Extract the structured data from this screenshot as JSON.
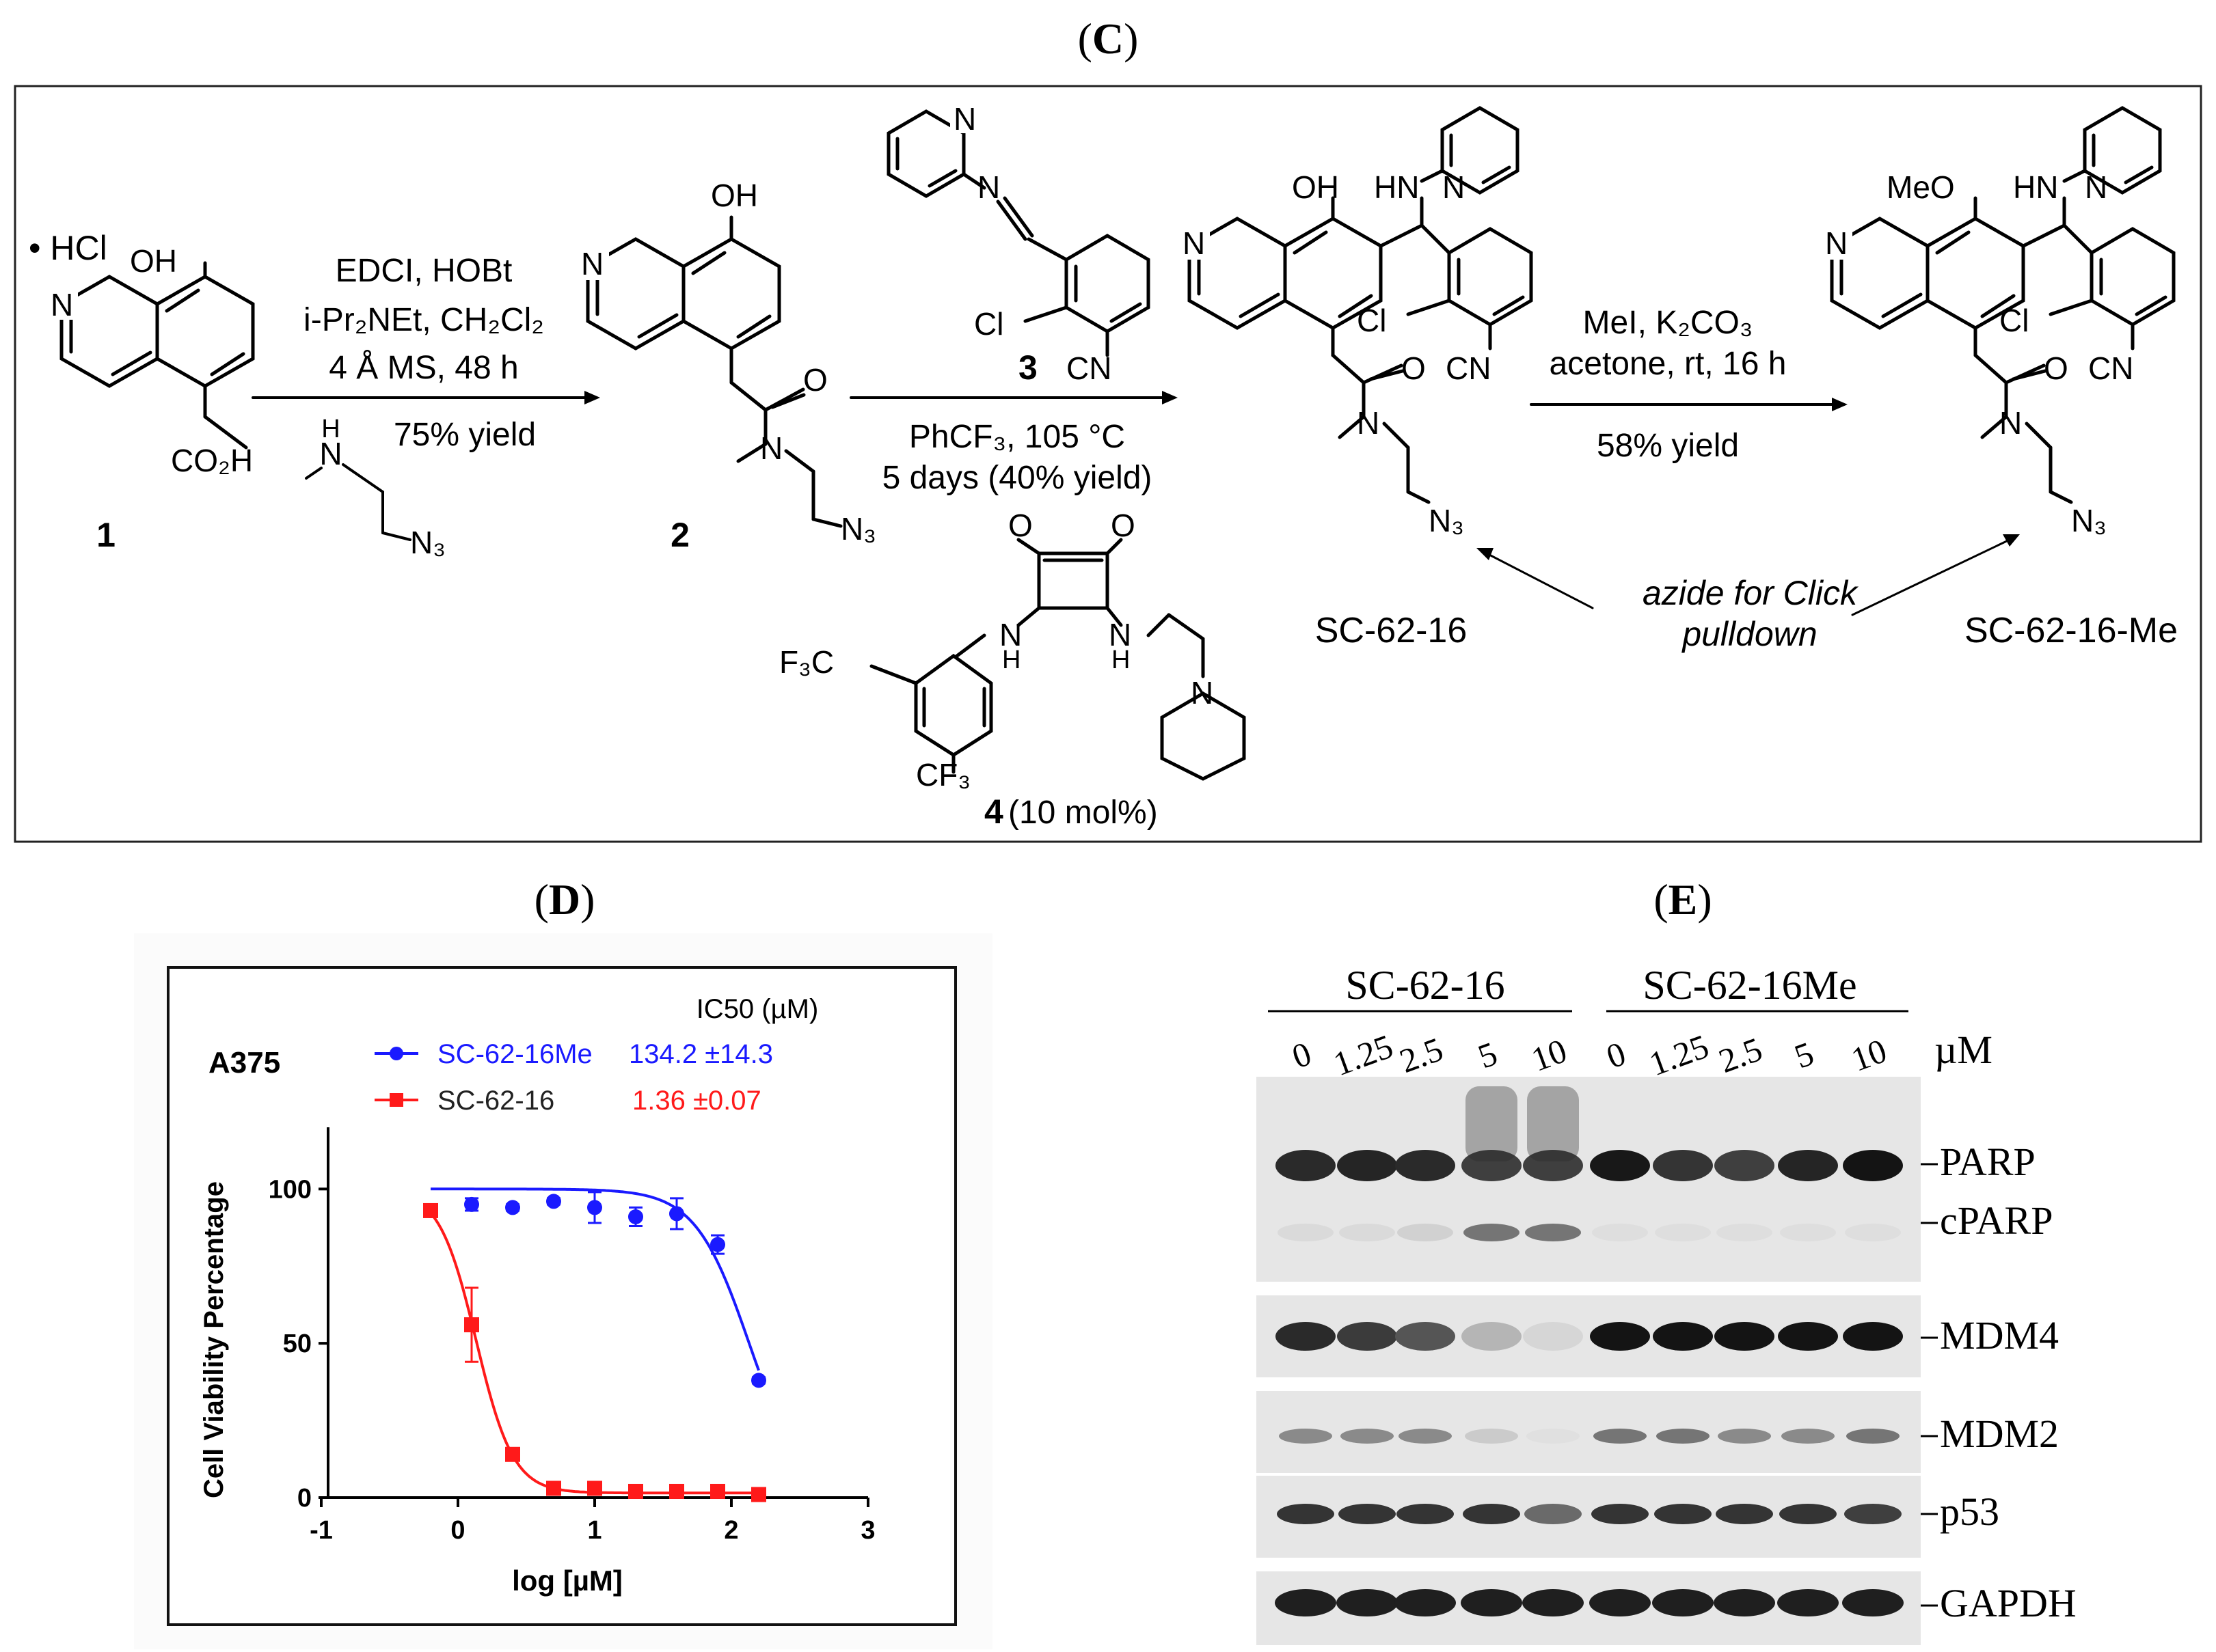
{
  "panels": {
    "C": {
      "label": "C"
    },
    "D": {
      "label": "D"
    },
    "E": {
      "label": "E"
    }
  },
  "scheme": {
    "reagent_text": {
      "start_salt": "• HCl",
      "oh": "OH",
      "n": "N",
      "co2h": "CO₂H",
      "cmpd1": "1",
      "step1_line1": "EDCI, HOBt",
      "step1_line2": "i-Pr₂NEt, CH₂Cl₂",
      "step1_line3": "4 Å MS, 48 h",
      "step1_yield": "75% yield",
      "amine_h": "H",
      "amine_n": "N",
      "amine_n3": "N₃",
      "cmpd2": "2",
      "cmpd2_o": "O",
      "cmpd2_n": "N",
      "cmpd2_n3": "N₃",
      "reagent3_n1": "N",
      "reagent3_n2": "N",
      "reagent3_cl": "Cl",
      "reagent3_cn": "CN",
      "reagent3_label": "3",
      "step2_line1": "PhCF₃, 105 °C",
      "step2_line2": "5 days (40% yield)",
      "cat_o1": "O",
      "cat_o2": "O",
      "cat_nh1": "N",
      "cat_h1": "H",
      "cat_nh2": "N",
      "cat_h2": "H",
      "cat_n3": "N",
      "cat_f3c": "F₃C",
      "cat_cf3": "CF₃",
      "cat_label": "4",
      "cat_loading": "(10 mol%)",
      "sc_oh": "OH",
      "sc_hn": "HN",
      "sc_n_pyr": "N",
      "sc_n_quin": "N",
      "sc_cl": "Cl",
      "sc_o": "O",
      "sc_cn": "CN",
      "sc_n_amide": "N",
      "sc_n3": "N₃",
      "sc_name": "SC-62-16",
      "step3_line1": "MeI, K₂CO₃",
      "step3_line2": "acetone, rt, 16 h",
      "step3_yield": "58% yield",
      "me_meo": "MeO",
      "me_hn": "HN",
      "me_n_pyr": "N",
      "me_n_quin": "N",
      "me_cl": "Cl",
      "me_o": "O",
      "me_cn": "CN",
      "me_n_amide": "N",
      "me_n3": "N₃",
      "me_name": "SC-62-16-Me",
      "azide_note_1": "azide for Click",
      "azide_note_2": "pulldown"
    }
  },
  "chart_data": {
    "type": "scatter",
    "title": "A375",
    "xlabel": "log [µM]",
    "ylabel": "Cell Viability Percentage",
    "xlim": [
      -1,
      3
    ],
    "ylim": [
      0,
      120
    ],
    "xticks": [
      "-1",
      "0",
      "1",
      "2",
      "3"
    ],
    "yticks": [
      "0",
      "50",
      "100"
    ],
    "legend_header": "IC50 (µM)",
    "legend_placement": "top",
    "grid": false,
    "series": [
      {
        "name": "SC-62-16Me",
        "ic50": "134.2 ±14.3",
        "color": "#1a1aff",
        "marker": "circle",
        "x": [
          -0.2,
          0.1,
          0.4,
          0.7,
          1.0,
          1.3,
          1.6,
          1.9,
          2.2
        ],
        "y": [
          93,
          95,
          94,
          96,
          94,
          91,
          92,
          82,
          38
        ],
        "err": [
          2,
          2,
          1,
          1,
          5,
          3,
          5,
          3,
          1
        ],
        "fit": {
          "top": 100,
          "bottom": 0,
          "logec50": 2.13,
          "hill": -2.2
        }
      },
      {
        "name": "SC-62-16",
        "ic50": "1.36 ±0.07",
        "color": "#ff1a1a",
        "marker": "square",
        "x": [
          -0.2,
          0.1,
          0.4,
          0.7,
          1.0,
          1.3,
          1.6,
          1.9,
          2.2
        ],
        "y": [
          93,
          56,
          14,
          3,
          3,
          2,
          2,
          2,
          1
        ],
        "err": [
          1,
          12,
          1,
          0.5,
          0.5,
          0.5,
          0.5,
          0.5,
          0.5
        ],
        "fit": {
          "top": 100,
          "bottom": 1.5,
          "logec50": 0.134,
          "hill": -3.2
        }
      }
    ]
  },
  "blot": {
    "group1": "SC-62-16",
    "group2": "SC-62-16Me",
    "concentrations": [
      "0",
      "1.25",
      "2.5",
      "5",
      "10",
      "0",
      "1.25",
      "2.5",
      "5",
      "10"
    ],
    "unit": "µM",
    "labels": {
      "parp": "PARP",
      "cparp": "cPARP",
      "mdm4": "MDM4",
      "mdm2": "MDM2",
      "p53": "p53",
      "gapdh": "GAPDH"
    },
    "band_intensity": {
      "parp": [
        0.9,
        0.92,
        0.9,
        0.8,
        0.8,
        0.98,
        0.85,
        0.8,
        0.92,
        1.0
      ],
      "cparp": [
        0.08,
        0.08,
        0.12,
        0.55,
        0.55,
        0.06,
        0.06,
        0.06,
        0.06,
        0.06
      ],
      "mdm4": [
        0.9,
        0.82,
        0.7,
        0.25,
        0.1,
        1.0,
        1.0,
        1.0,
        1.0,
        1.0
      ],
      "mdm2": [
        0.45,
        0.45,
        0.45,
        0.15,
        0.05,
        0.55,
        0.55,
        0.45,
        0.45,
        0.55
      ],
      "p53": [
        0.85,
        0.85,
        0.85,
        0.85,
        0.6,
        0.85,
        0.85,
        0.85,
        0.85,
        0.8
      ],
      "gapdh": [
        0.95,
        0.95,
        0.95,
        0.95,
        0.95,
        0.95,
        0.95,
        0.95,
        0.95,
        0.95
      ]
    }
  }
}
